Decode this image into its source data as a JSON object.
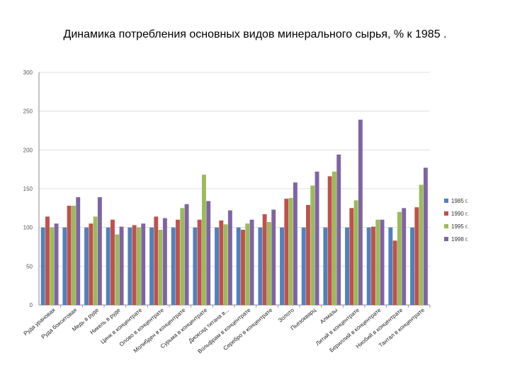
{
  "chart_data": {
    "type": "bar",
    "title": "Динамика потребления основных видов минерального сырья, % к 1985 .",
    "xlabel": "",
    "ylabel": "",
    "ylim": [
      0,
      300
    ],
    "yticks": [
      0,
      50,
      100,
      150,
      200,
      250,
      300
    ],
    "grid": true,
    "legend_position": "right",
    "categories": [
      "Руда урановая",
      "Руда бокситовая",
      "Медь в руде",
      "Никель в руде",
      "Цинк в концентрате",
      "Олово в концентрате",
      "Молибден в концентрате",
      "Сурьма в концентрате",
      "Диоксид титана в...",
      "Вольфрам в концентрате",
      "Серебро в концентрате",
      "Золото",
      "Пьезокварц",
      "Алмазы",
      "Литий в концентрате",
      "Бериллий в концентрате",
      "Ниобий в концентрате",
      "Тантал в концентрате"
    ],
    "series": [
      {
        "name": "1985 г.",
        "color": "#4F81BD",
        "values": [
          100,
          100,
          100,
          100,
          100,
          100,
          100,
          100,
          100,
          100,
          100,
          100,
          100,
          100,
          100,
          100,
          100,
          100
        ]
      },
      {
        "name": "1990 г.",
        "color": "#C0504D",
        "values": [
          114,
          128,
          105,
          110,
          103,
          114,
          110,
          110,
          109,
          97,
          117,
          137,
          129,
          166,
          125,
          101,
          83,
          126
        ]
      },
      {
        "name": "1995 г.",
        "color": "#9BBB59",
        "values": [
          100,
          128,
          114,
          91,
          100,
          97,
          125,
          168,
          104,
          105,
          107,
          138,
          154,
          172,
          135,
          110,
          120,
          155
        ]
      },
      {
        "name": "1998 г.",
        "color": "#8064A2",
        "values": [
          105,
          139,
          139,
          101,
          105,
          112,
          130,
          134,
          122,
          110,
          123,
          158,
          172,
          194,
          239,
          110,
          125,
          177
        ]
      }
    ]
  }
}
